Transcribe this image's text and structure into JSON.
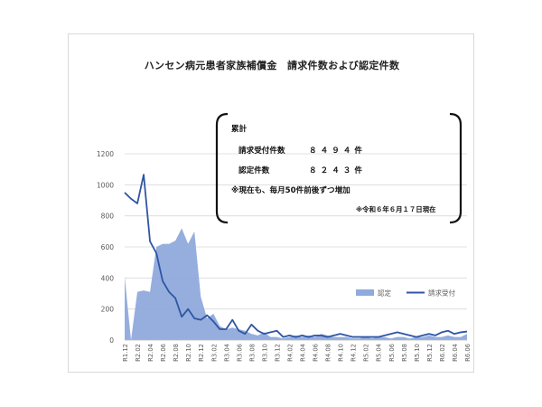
{
  "chart_data": {
    "type": "area+line",
    "title": "ハンセン病元患者家族補償金　請求件数および認定件数",
    "xlabel": "",
    "ylabel": "",
    "ylim": [
      0,
      1200
    ],
    "yticks": [
      "0",
      "200",
      "400",
      "600",
      "800",
      "1000",
      "1200"
    ],
    "categories": [
      "R1.12",
      "R2.01",
      "R2.02",
      "R2.03",
      "R2.04",
      "R2.05",
      "R2.06",
      "R2.07",
      "R2.08",
      "R2.09",
      "R2.10",
      "R2.11",
      "R2.12",
      "R3.01",
      "R3.02",
      "R3.03",
      "R3.04",
      "R3.05",
      "R3.06",
      "R3.07",
      "R3.08",
      "R3.09",
      "R3.10",
      "R3.11",
      "R3.12",
      "R4.01",
      "R4.02",
      "R4.03",
      "R4.04",
      "R4.05",
      "R4.06",
      "R4.07",
      "R4.08",
      "R4.09",
      "R4.10",
      "R4.11",
      "R4.12",
      "R5.01",
      "R5.02",
      "R5.03",
      "R5.04",
      "R5.05",
      "R5.06",
      "R5.07",
      "R5.08",
      "R5.09",
      "R5.10",
      "R5.11",
      "R5.12",
      "R6.01",
      "R6.02",
      "R6.03",
      "R6.04",
      "R6.05",
      "R6.06"
    ],
    "tick_labels": [
      "R1.12",
      "R2.02",
      "R2.04",
      "R2.06",
      "R2.08",
      "R2.10",
      "R2.12",
      "R3.02",
      "R3.04",
      "R3.06",
      "R3.08",
      "R3.10",
      "R3.12",
      "R4.02",
      "R4.04",
      "R4.06",
      "R4.08",
      "R4.10",
      "R4.12",
      "R5.02",
      "R5.04",
      "R5.06",
      "R5.08",
      "R5.10",
      "R5.12",
      "R6.02",
      "R6.04",
      "R6.06"
    ],
    "series": [
      {
        "name": "認定",
        "kind": "area",
        "color": "#8faadc",
        "values": [
          410,
          0,
          310,
          320,
          310,
          600,
          620,
          620,
          640,
          720,
          620,
          700,
          280,
          140,
          170,
          90,
          70,
          80,
          70,
          60,
          40,
          30,
          50,
          20,
          20,
          10,
          20,
          30,
          20,
          30,
          20,
          40,
          30,
          20,
          20,
          20,
          10,
          10,
          20,
          10,
          20,
          20,
          10,
          20,
          20,
          10,
          20,
          20,
          30,
          20,
          20,
          30,
          20,
          20,
          40
        ]
      },
      {
        "name": "請求受付",
        "kind": "line",
        "color": "#2f55a4",
        "values": [
          950,
          910,
          880,
          1065,
          635,
          560,
          380,
          310,
          270,
          150,
          200,
          140,
          130,
          160,
          120,
          70,
          70,
          130,
          60,
          40,
          100,
          60,
          40,
          50,
          60,
          20,
          30,
          20,
          30,
          20,
          30,
          30,
          20,
          30,
          40,
          30,
          20,
          20,
          20,
          20,
          20,
          30,
          40,
          50,
          40,
          30,
          20,
          30,
          40,
          30,
          50,
          60,
          40,
          50,
          55
        ]
      }
    ],
    "legend": {
      "position": "right",
      "items": [
        "認定",
        "請求受付"
      ]
    }
  },
  "summary": {
    "heading": "累計",
    "received_label": "請求受付件数",
    "received_value": "８４９４件",
    "approved_label": "認定件数",
    "approved_value": "８２４３件",
    "note": "※現在も、毎月50件前後ずつ増加",
    "as_of": "※令和６年６月１７日現在"
  },
  "colors": {
    "area": "#8faadc",
    "line": "#2f55a4",
    "grid": "#d9d9d9",
    "axis_text": "#595959",
    "bracket": "#111111"
  }
}
